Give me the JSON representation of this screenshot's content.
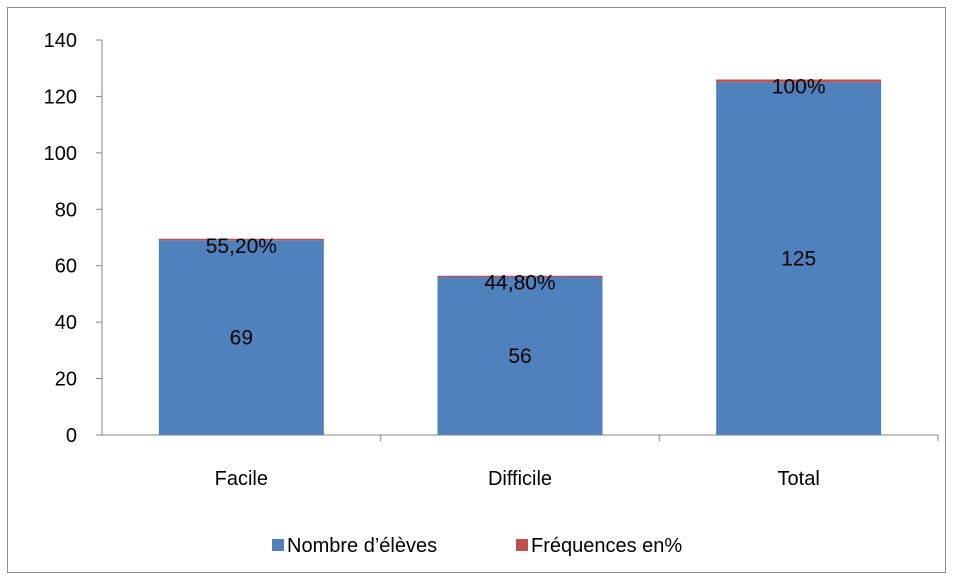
{
  "chart_data": {
    "type": "bar",
    "stacked": true,
    "categories": [
      "Facile",
      "Difficile",
      "Total"
    ],
    "series": [
      {
        "name": "Nombre d’élèves",
        "values": [
          69,
          56,
          125
        ],
        "data_labels": [
          "69",
          "56",
          "125"
        ],
        "color": "#4F81BD"
      },
      {
        "name": "Fréquences en%",
        "values": [
          0.552,
          0.448,
          1.0
        ],
        "data_labels": [
          "55,20%",
          "44,80%",
          "100%"
        ],
        "color": "#C0504D"
      }
    ],
    "title": "",
    "xlabel": "",
    "ylabel": "",
    "ylim": [
      0,
      140
    ],
    "yticks": [
      0,
      20,
      40,
      60,
      80,
      100,
      120,
      140
    ],
    "grid": false,
    "legend_position": "bottom"
  }
}
